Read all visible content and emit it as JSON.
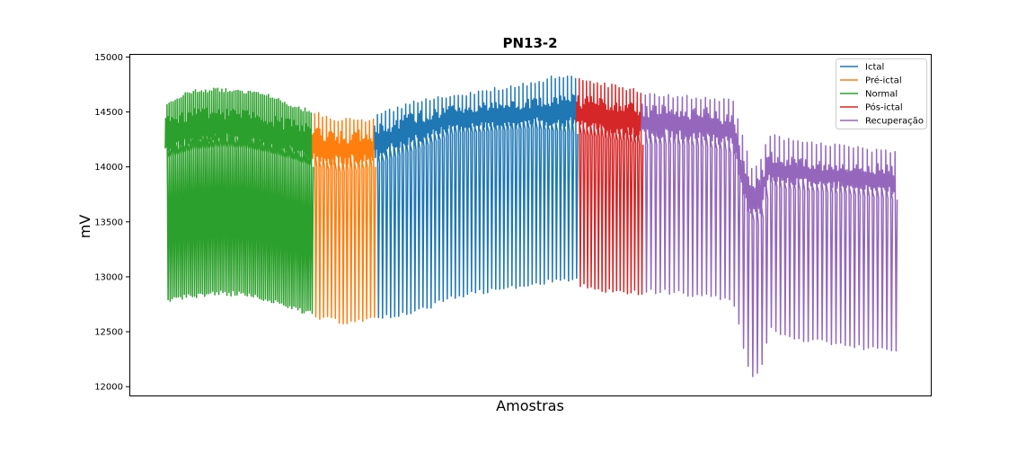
{
  "chart_data": {
    "type": "line",
    "title": "PN13-2",
    "xlabel": "Amostras",
    "ylabel": "mV",
    "ylim": [
      11920,
      15020
    ],
    "yticks": [
      12000,
      12500,
      13000,
      13500,
      14000,
      14500,
      15000
    ],
    "xticks": [],
    "grid": false,
    "legend_position": "upper-right",
    "series": [
      {
        "name": "Ictal",
        "color": "#1f77b4",
        "x_range": [
          16.0,
          31.5
        ],
        "cycles": 50,
        "envelope": {
          "x": [
            16.0,
            19.0,
            22.0,
            25.0,
            28.0,
            30.0,
            31.5
          ],
          "low": [
            14020,
            14150,
            14300,
            14320,
            14350,
            14320,
            14300
          ],
          "high": [
            14380,
            14500,
            14560,
            14590,
            14620,
            14660,
            14700
          ],
          "peak": [
            14480,
            14600,
            14660,
            14720,
            14780,
            14840,
            14840
          ],
          "trough": [
            12600,
            12650,
            12800,
            12850,
            12900,
            12950,
            12950
          ]
        }
      },
      {
        "name": "Pré-ictal",
        "color": "#ff7f0e",
        "x_range": [
          11.2,
          16.0
        ],
        "cycles": 16,
        "envelope": {
          "x": [
            11.2,
            13.5,
            16.0
          ],
          "low": [
            14000,
            13950,
            14000
          ],
          "high": [
            14360,
            14340,
            14350
          ],
          "peak": [
            14520,
            14440,
            14450
          ],
          "trough": [
            12620,
            12560,
            12590
          ]
        }
      },
      {
        "name": "Normal",
        "color": "#2ca02c",
        "x_range": [
          0.0,
          11.2
        ],
        "cycles": 72,
        "envelope": {
          "x": [
            0.0,
            2.0,
            4.0,
            6.0,
            8.0,
            10.0,
            11.2
          ],
          "low": [
            14080,
            14150,
            14180,
            14170,
            14120,
            14050,
            14000
          ],
          "high": [
            14450,
            14530,
            14550,
            14520,
            14480,
            14420,
            14400
          ],
          "peak": [
            14600,
            14700,
            14720,
            14700,
            14660,
            14560,
            14520
          ],
          "trough": [
            12770,
            12800,
            12830,
            12820,
            12760,
            12680,
            12640
          ]
        }
      },
      {
        "name": "Pós-ictal",
        "color": "#d62728",
        "x_range": [
          31.5,
          36.5
        ],
        "cycles": 18,
        "envelope": {
          "x": [
            31.5,
            34.0,
            36.5
          ],
          "low": [
            14300,
            14250,
            14200
          ],
          "high": [
            14660,
            14620,
            14580
          ],
          "peak": [
            14820,
            14760,
            14700
          ],
          "trough": [
            12900,
            12850,
            12830
          ]
        }
      },
      {
        "name": "Recuperação",
        "color": "#9467bd",
        "x_range": [
          36.5,
          56.0
        ],
        "cycles": 55,
        "envelope": {
          "x": [
            36.5,
            39.0,
            41.5,
            43.5,
            44.5,
            45.0,
            45.5,
            46.3,
            47.0,
            49.0,
            52.0,
            56.0
          ],
          "low": [
            14200,
            14200,
            14180,
            14120,
            13600,
            13500,
            13450,
            13850,
            13800,
            13780,
            13750,
            13700
          ],
          "high": [
            14580,
            14560,
            14540,
            14500,
            14000,
            13850,
            13900,
            14150,
            14100,
            14080,
            14050,
            14020
          ],
          "peak": [
            14680,
            14660,
            14640,
            14620,
            14200,
            14000,
            14050,
            14320,
            14280,
            14250,
            14200,
            14150
          ],
          "trough": [
            12850,
            12830,
            12800,
            12750,
            12200,
            12050,
            12100,
            12500,
            12450,
            12400,
            12350,
            12300
          ]
        }
      }
    ]
  }
}
